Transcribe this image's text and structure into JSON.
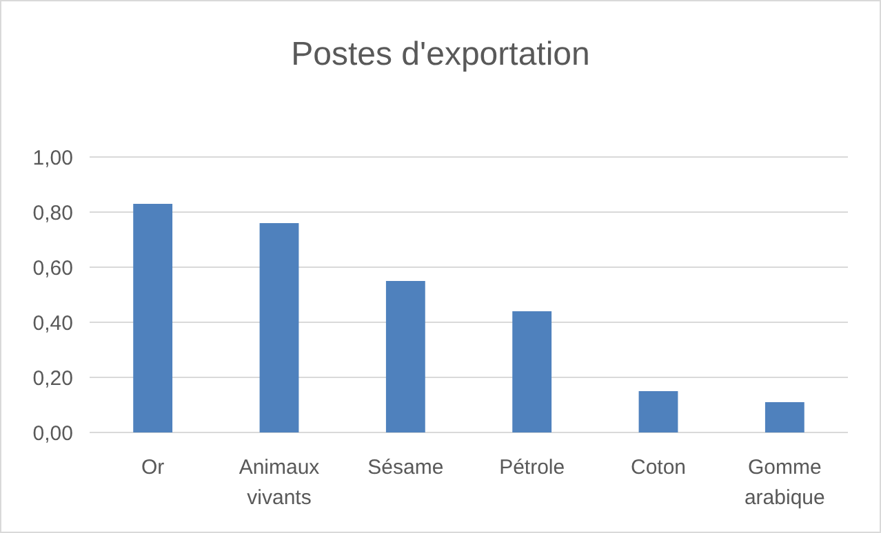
{
  "chart_data": {
    "type": "bar",
    "title": "Postes d'exportation",
    "categories": [
      "Or",
      "Animaux vivants",
      "Sésame",
      "Pétrole",
      "Coton",
      "Gomme arabique"
    ],
    "values": [
      0.83,
      0.76,
      0.55,
      0.44,
      0.15,
      0.11
    ],
    "color": "#4f81bd",
    "ylim": [
      0,
      1
    ],
    "yticks": [
      {
        "value": 0,
        "label": "0,00"
      },
      {
        "value": 0.2,
        "label": "0,20"
      },
      {
        "value": 0.4,
        "label": "0,40"
      },
      {
        "value": 0.6,
        "label": "0,60"
      },
      {
        "value": 0.8,
        "label": "0,80"
      },
      {
        "value": 1,
        "label": "1,00"
      }
    ],
    "grid": "y"
  }
}
